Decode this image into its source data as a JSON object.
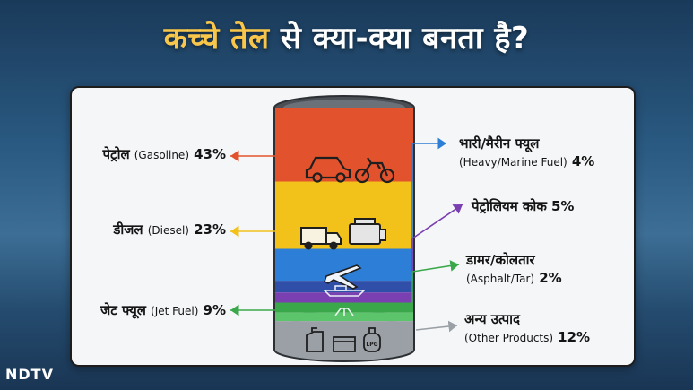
{
  "header": {
    "title_highlight": "कच्चे तेल",
    "title_rest": " से क्या-क्या बनता है?"
  },
  "logo": "NDTV",
  "chart_data": {
    "type": "bar",
    "categories": [
      "पेट्रोल (Gasoline)",
      "डीजल (Diesel)",
      "जेट फ्यूल (Jet Fuel)",
      "भारी/मैरीन फ्यूल (Heavy/Marine Fuel)",
      "पेट्रोलियम कोक",
      "डामर/कोलतार (Asphalt/Tar)",
      "अन्य उत्पाद (Other Products)"
    ],
    "values": [
      43,
      23,
      9,
      4,
      5,
      2,
      12
    ],
    "unit": "%"
  },
  "labels": {
    "gasoline": {
      "hi": "पेट्रोल",
      "en": "(Gasoline)",
      "pct": "43%",
      "color": "#e2532d",
      "icons": [
        "car-icon",
        "motorcycle-icon"
      ]
    },
    "diesel": {
      "hi": "डीजल",
      "en": "(Diesel)",
      "pct": "23%",
      "color": "#f2c21b",
      "icons": [
        "truck-icon",
        "engine-icon"
      ]
    },
    "jet": {
      "hi": "जेट फ्यूल",
      "en": "(Jet Fuel)",
      "pct": "9%",
      "color": "#2c7ed6",
      "icons": [
        "airplane-icon"
      ]
    },
    "marine": {
      "hi": "भारी/मैरीन फ्यूल",
      "en": "(Heavy/Marine Fuel)",
      "pct": "4%",
      "color": "#2f4fa8",
      "icons": [
        "ship-icon"
      ]
    },
    "coke": {
      "hi": "पेट्रोलियम कोक",
      "pct": "5%",
      "color": "#7a3fb0"
    },
    "asphalt": {
      "hi": "डामर/कोलतार",
      "en": "(Asphalt/Tar)",
      "pct": "2%",
      "color": "#3aa84a",
      "icons": [
        "road-icon"
      ]
    },
    "other": {
      "hi": "अन्य उत्पाद",
      "en": "(Other Products)",
      "pct": "12%",
      "color": "#9aa0a6",
      "icons": [
        "jerrycan-icon",
        "box-icon",
        "gas-cylinder-icon"
      ]
    }
  },
  "icon_text": {
    "lpg": "LPG"
  }
}
